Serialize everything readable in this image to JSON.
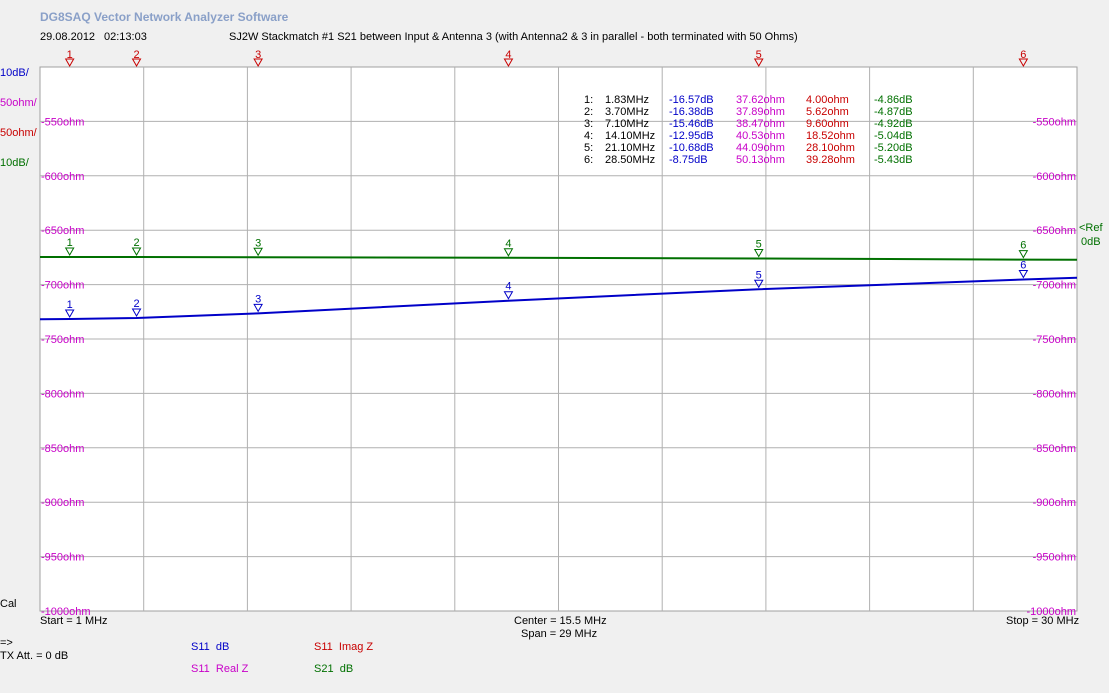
{
  "app": {
    "title": "DG8SAQ Vector Network Analyzer Software"
  },
  "header": {
    "date": "29.08.2012",
    "time": "02:13:03",
    "measurement_title": "SJ2W Stackmatch #1 S21 between Input & Antenna 3 (with Antenna2 & 3 in parallel - both terminated with 50 Ohms)"
  },
  "left_scale": {
    "s11_db": "10dB/",
    "real_z": "50ohm/",
    "imag_z": "50ohm/",
    "s21_db": "10dB/",
    "cal": "Cal"
  },
  "reference": {
    "label": "<Ref",
    "value": "0dB"
  },
  "footer": {
    "start": "Start = 1 MHz",
    "center": "Center = 15.5 MHz",
    "span": "Span = 29 MHz",
    "stop": "Stop = 30 MHz",
    "arrow": "=>",
    "tx_att": "TX Att.  = 0 dB"
  },
  "legend": [
    {
      "trace": "S11",
      "name": "dB",
      "color": "#0000c8"
    },
    {
      "trace": "S11",
      "name": "Imag Z",
      "color": "#c80000"
    },
    {
      "trace": "S11",
      "name": "Real Z",
      "color": "#c800c8"
    },
    {
      "trace": "S21",
      "name": "dB",
      "color": "#007000"
    }
  ],
  "markers": [
    {
      "num": "1:",
      "freq": "1.83MHz",
      "s11_db": "-16.57dB",
      "real_z": "37.62ohm",
      "imag_z": "4.00ohm",
      "s21_db": "-4.86dB"
    },
    {
      "num": "2:",
      "freq": "3.70MHz",
      "s11_db": "-16.38dB",
      "real_z": "37.89ohm",
      "imag_z": "5.62ohm",
      "s21_db": "-4.87dB"
    },
    {
      "num": "3:",
      "freq": "7.10MHz",
      "s11_db": "-15.46dB",
      "real_z": "38.47ohm",
      "imag_z": "9.60ohm",
      "s21_db": "-4.92dB"
    },
    {
      "num": "4:",
      "freq": "14.10MHz",
      "s11_db": "-12.95dB",
      "real_z": "40.53ohm",
      "imag_z": "18.52ohm",
      "s21_db": "-5.04dB"
    },
    {
      "num": "5:",
      "freq": "21.10MHz",
      "s11_db": "-10.68dB",
      "real_z": "44.09ohm",
      "imag_z": "28.10ohm",
      "s21_db": "-5.20dB"
    },
    {
      "num": "6:",
      "freq": "28.50MHz",
      "s11_db": "-8.75dB",
      "real_z": "50.13ohm",
      "imag_z": "39.28ohm",
      "s21_db": "-5.43dB"
    }
  ],
  "chart_data": {
    "type": "line",
    "x_unit": "MHz",
    "xlim": [
      1,
      30
    ],
    "ylim_ohm": [
      -1000,
      -500
    ],
    "y_tick_labels": [
      "-550ohm",
      "-600ohm",
      "-650ohm",
      "-700ohm",
      "-750ohm",
      "-800ohm",
      "-850ohm",
      "-900ohm",
      "-950ohm",
      "-1000ohm"
    ],
    "y_ticks": [
      -550,
      -600,
      -650,
      -700,
      -750,
      -800,
      -850,
      -900,
      -950,
      -1000
    ],
    "grid": true,
    "marker_freqs": [
      1.83,
      3.7,
      7.1,
      14.1,
      21.1,
      28.5
    ],
    "marker_labels": [
      "1",
      "2",
      "3",
      "4",
      "5",
      "6"
    ],
    "series": [
      {
        "name": "S21 dB",
        "color": "#007000",
        "x": [
          1,
          1.83,
          3.7,
          7.1,
          14.1,
          21.1,
          28.5,
          30
        ],
        "y": [
          -4.86,
          -4.86,
          -4.87,
          -4.92,
          -5.04,
          -5.2,
          -5.43,
          -5.45
        ]
      },
      {
        "name": "S11 dB",
        "color": "#0000c8",
        "x": [
          1,
          1.83,
          3.7,
          7.1,
          14.1,
          21.1,
          28.5,
          30
        ],
        "y": [
          -16.6,
          -16.57,
          -16.38,
          -15.46,
          -12.95,
          -10.68,
          -8.75,
          -8.4
        ]
      }
    ]
  }
}
